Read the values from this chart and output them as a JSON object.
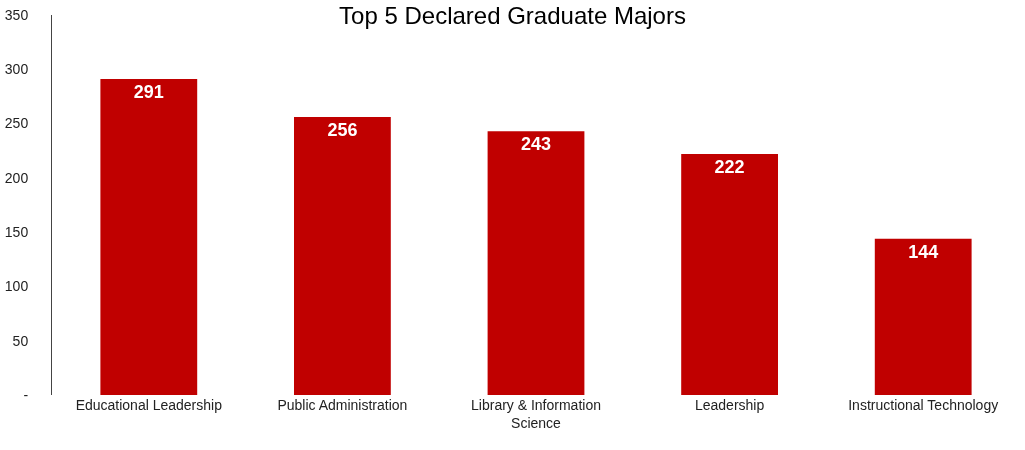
{
  "chart_data": {
    "type": "bar",
    "title": "Top 5 Declared Graduate Majors",
    "categories": [
      "Educational Leadership",
      "Public Administration",
      "Library & Information Science",
      "Leadership",
      "Instructional Technology"
    ],
    "values": [
      291,
      256,
      243,
      222,
      144
    ],
    "color": "#c00000",
    "ylim": [
      0,
      350
    ],
    "yticks": [
      {
        "value": 0,
        "label": "-"
      },
      50,
      100,
      150,
      200,
      250,
      300,
      350
    ],
    "data_labels": true
  }
}
